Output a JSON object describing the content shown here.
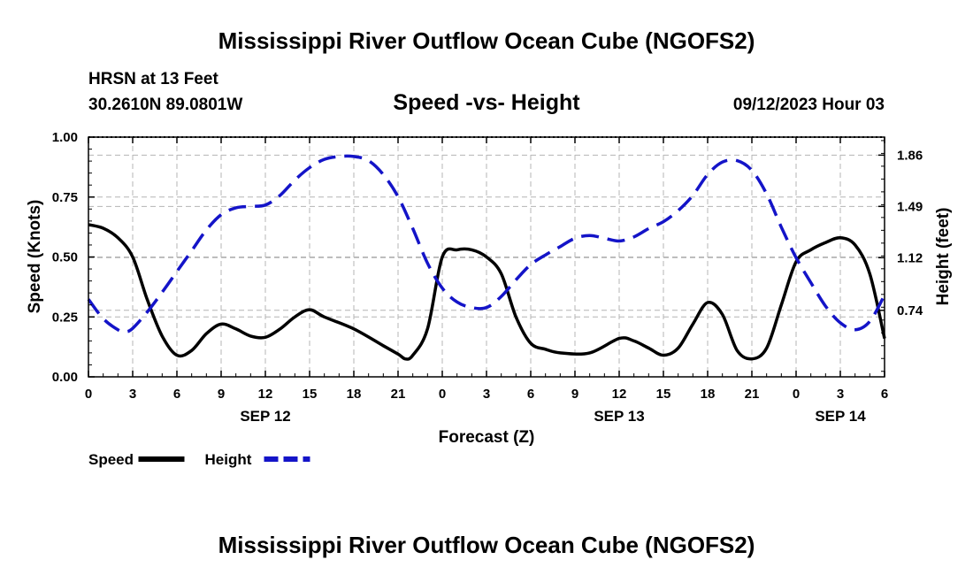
{
  "page": {
    "title_top": "Mississippi River Outflow Ocean Cube (NGOFS2)",
    "title_bottom": "Mississippi River Outflow Ocean Cube (NGOFS2)",
    "station": "HRSN at 13 Feet",
    "coords": "30.2610N  89.0801W",
    "subtitle": "Speed -vs- Height",
    "datetime": "09/12/2023 Hour 03"
  },
  "chart_data": {
    "type": "line",
    "title": "Speed -vs- Height",
    "xlabel": "Forecast (Z)",
    "ylabel": "Speed (Knots)",
    "y2label": "Height (feet)",
    "x_range_hours": [
      0,
      54
    ],
    "ylim": [
      0,
      1.0
    ],
    "y2lim": [
      0.26,
      1.99
    ],
    "x_ticks": [
      {
        "h": 0,
        "label": "0"
      },
      {
        "h": 3,
        "label": "3"
      },
      {
        "h": 6,
        "label": "6"
      },
      {
        "h": 9,
        "label": "9"
      },
      {
        "h": 12,
        "label": "12"
      },
      {
        "h": 15,
        "label": "15"
      },
      {
        "h": 18,
        "label": "18"
      },
      {
        "h": 21,
        "label": "21"
      },
      {
        "h": 24,
        "label": "0"
      },
      {
        "h": 27,
        "label": "3"
      },
      {
        "h": 30,
        "label": "6"
      },
      {
        "h": 33,
        "label": "9"
      },
      {
        "h": 36,
        "label": "12"
      },
      {
        "h": 39,
        "label": "15"
      },
      {
        "h": 42,
        "label": "18"
      },
      {
        "h": 45,
        "label": "21"
      },
      {
        "h": 48,
        "label": "0"
      },
      {
        "h": 51,
        "label": "3"
      },
      {
        "h": 54,
        "label": "6"
      }
    ],
    "date_labels": [
      {
        "h": 12,
        "label": "SEP 12"
      },
      {
        "h": 36,
        "label": "SEP 13"
      },
      {
        "h": 51,
        "label": "SEP 14"
      }
    ],
    "y_ticks": [
      {
        "v": 0.0,
        "label": "0.00"
      },
      {
        "v": 0.25,
        "label": "0.25"
      },
      {
        "v": 0.5,
        "label": "0.50"
      },
      {
        "v": 0.75,
        "label": "0.75"
      },
      {
        "v": 1.0,
        "label": "1.00"
      }
    ],
    "y2_ticks": [
      {
        "v": 0.74,
        "label": "0.74"
      },
      {
        "v": 1.12,
        "label": "1.12"
      },
      {
        "v": 1.49,
        "label": "1.49"
      },
      {
        "v": 1.86,
        "label": "1.86"
      }
    ],
    "series": [
      {
        "name": "Speed",
        "axis": "left",
        "color": "#000000",
        "dash": "solid",
        "points": [
          [
            0,
            0.635
          ],
          [
            1,
            0.62
          ],
          [
            2,
            0.58
          ],
          [
            3,
            0.5
          ],
          [
            4,
            0.32
          ],
          [
            5,
            0.17
          ],
          [
            6,
            0.09
          ],
          [
            7,
            0.11
          ],
          [
            8,
            0.18
          ],
          [
            9,
            0.22
          ],
          [
            10,
            0.2
          ],
          [
            11,
            0.17
          ],
          [
            12,
            0.165
          ],
          [
            13,
            0.2
          ],
          [
            14,
            0.25
          ],
          [
            15,
            0.28
          ],
          [
            16,
            0.25
          ],
          [
            18,
            0.2
          ],
          [
            20,
            0.13
          ],
          [
            21,
            0.095
          ],
          [
            21.5,
            0.075
          ],
          [
            22,
            0.09
          ],
          [
            23,
            0.2
          ],
          [
            24,
            0.5
          ],
          [
            25,
            0.53
          ],
          [
            26,
            0.53
          ],
          [
            27,
            0.5
          ],
          [
            28,
            0.43
          ],
          [
            29,
            0.25
          ],
          [
            30,
            0.14
          ],
          [
            31,
            0.115
          ],
          [
            32,
            0.1
          ],
          [
            34,
            0.1
          ],
          [
            36,
            0.16
          ],
          [
            37,
            0.15
          ],
          [
            38,
            0.12
          ],
          [
            39,
            0.09
          ],
          [
            40,
            0.12
          ],
          [
            41,
            0.22
          ],
          [
            42,
            0.31
          ],
          [
            43,
            0.26
          ],
          [
            44,
            0.11
          ],
          [
            45,
            0.075
          ],
          [
            46,
            0.12
          ],
          [
            47,
            0.3
          ],
          [
            48,
            0.48
          ],
          [
            49,
            0.53
          ],
          [
            50,
            0.56
          ],
          [
            51,
            0.58
          ],
          [
            52,
            0.55
          ],
          [
            53,
            0.43
          ],
          [
            54,
            0.16
          ]
        ]
      },
      {
        "name": "Height",
        "axis": "right",
        "color": "#1414c8",
        "dash": "dashed",
        "points": [
          [
            0,
            0.82
          ],
          [
            1,
            0.68
          ],
          [
            2,
            0.6
          ],
          [
            2.5,
            0.585
          ],
          [
            3,
            0.61
          ],
          [
            4,
            0.73
          ],
          [
            5,
            0.87
          ],
          [
            6,
            1.02
          ],
          [
            7,
            1.17
          ],
          [
            8,
            1.32
          ],
          [
            9,
            1.43
          ],
          [
            10,
            1.48
          ],
          [
            11,
            1.49
          ],
          [
            12,
            1.5
          ],
          [
            13,
            1.57
          ],
          [
            14,
            1.68
          ],
          [
            15,
            1.77
          ],
          [
            16,
            1.83
          ],
          [
            17,
            1.85
          ],
          [
            18,
            1.85
          ],
          [
            19,
            1.82
          ],
          [
            20,
            1.72
          ],
          [
            21,
            1.56
          ],
          [
            22,
            1.33
          ],
          [
            23,
            1.08
          ],
          [
            24,
            0.9
          ],
          [
            25,
            0.8
          ],
          [
            26,
            0.76
          ],
          [
            27,
            0.76
          ],
          [
            28,
            0.84
          ],
          [
            29,
            0.96
          ],
          [
            30,
            1.07
          ],
          [
            31,
            1.14
          ],
          [
            32,
            1.2
          ],
          [
            33,
            1.26
          ],
          [
            34,
            1.28
          ],
          [
            35,
            1.26
          ],
          [
            36,
            1.24
          ],
          [
            37,
            1.27
          ],
          [
            38,
            1.33
          ],
          [
            39,
            1.38
          ],
          [
            40,
            1.46
          ],
          [
            41,
            1.57
          ],
          [
            42,
            1.72
          ],
          [
            43,
            1.81
          ],
          [
            44,
            1.82
          ],
          [
            45,
            1.75
          ],
          [
            46,
            1.58
          ],
          [
            47,
            1.34
          ],
          [
            48,
            1.12
          ],
          [
            49,
            0.94
          ],
          [
            50,
            0.77
          ],
          [
            51,
            0.65
          ],
          [
            52,
            0.6
          ],
          [
            53,
            0.66
          ],
          [
            54,
            0.85
          ]
        ]
      }
    ],
    "legend": [
      {
        "label": "Speed",
        "color": "#000000",
        "dash": "solid"
      },
      {
        "label": "Height",
        "color": "#1414c8",
        "dash": "dashed"
      }
    ],
    "grid": true,
    "legend_position": "bottom-left"
  }
}
